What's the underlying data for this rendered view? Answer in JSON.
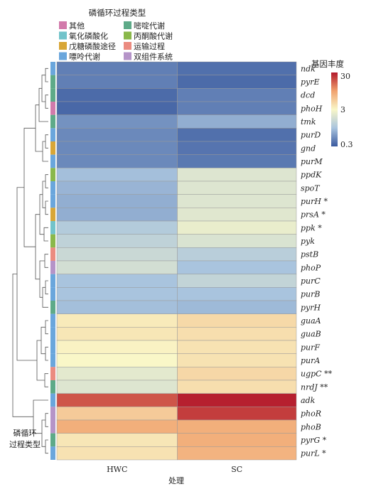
{
  "legend": {
    "title": "磷循环过程类型",
    "items": [
      {
        "label": "其他",
        "color": "#d27aab"
      },
      {
        "label": "嘧啶代谢",
        "color": "#5eaa88"
      },
      {
        "label": "氧化磷酸化",
        "color": "#72c3ca"
      },
      {
        "label": "丙酮酸代谢",
        "color": "#8ab84a"
      },
      {
        "label": "戊糖磷酸途径",
        "color": "#d8a636"
      },
      {
        "label": "运输过程",
        "color": "#eb8b80"
      },
      {
        "label": "嘌呤代谢",
        "color": "#6aa6dc"
      },
      {
        "label": "双组件系统",
        "color": "#b594c8"
      }
    ]
  },
  "colorbar": {
    "title": "基因丰度",
    "ticks": [
      "30",
      "3",
      "0.3"
    ]
  },
  "side_label": [
    "磷循环",
    "过程类型"
  ],
  "xlabel": "处理",
  "chart_data": {
    "type": "heatmap",
    "columns": [
      "HWC",
      "SC"
    ],
    "scale": "log",
    "color_range": [
      0.3,
      30
    ],
    "rows": [
      {
        "label": "ndk",
        "mark": "",
        "category": "嘌呤代谢",
        "values": [
          0.45,
          0.38
        ]
      },
      {
        "label": "pyrE",
        "mark": "",
        "category": "嘧啶代谢",
        "values": [
          0.45,
          0.36
        ]
      },
      {
        "label": "dcd",
        "mark": "",
        "category": "嘧啶代谢",
        "values": [
          0.36,
          0.45
        ]
      },
      {
        "label": "phoH",
        "mark": "",
        "category": "其他",
        "values": [
          0.35,
          0.45
        ]
      },
      {
        "label": "tmk",
        "mark": "",
        "category": "嘧啶代谢",
        "values": [
          0.55,
          0.75
        ]
      },
      {
        "label": "purD",
        "mark": "",
        "category": "嘌呤代谢",
        "values": [
          0.5,
          0.38
        ]
      },
      {
        "label": "gnd",
        "mark": "",
        "category": "戊糖磷酸途径",
        "values": [
          0.5,
          0.4
        ]
      },
      {
        "label": "purM",
        "mark": "",
        "category": "嘌呤代谢",
        "values": [
          0.5,
          0.42
        ]
      },
      {
        "label": "ppdK",
        "mark": "",
        "category": "丙酮酸代谢",
        "values": [
          0.9,
          2.0
        ]
      },
      {
        "label": "spoT",
        "mark": "",
        "category": "嘌呤代谢",
        "values": [
          0.8,
          2.0
        ]
      },
      {
        "label": "purH",
        "mark": "*",
        "category": "嘌呤代谢",
        "values": [
          0.75,
          2.0
        ]
      },
      {
        "label": "prsA",
        "mark": "*",
        "category": "戊糖磷酸途径",
        "values": [
          0.75,
          2.1
        ]
      },
      {
        "label": "ppk",
        "mark": "*",
        "category": "氧化磷酸化",
        "values": [
          1.1,
          2.4
        ]
      },
      {
        "label": "pyk",
        "mark": "",
        "category": "丙酮酸代谢",
        "values": [
          1.3,
          1.9
        ]
      },
      {
        "label": "pstB",
        "mark": "",
        "category": "运输过程",
        "values": [
          1.5,
          1.2
        ]
      },
      {
        "label": "phoP",
        "mark": "",
        "category": "双组件系统",
        "values": [
          1.7,
          0.95
        ]
      },
      {
        "label": "purC",
        "mark": "",
        "category": "嘌呤代谢",
        "values": [
          0.95,
          1.35
        ]
      },
      {
        "label": "purB",
        "mark": "",
        "category": "嘌呤代谢",
        "values": [
          0.95,
          0.95
        ]
      },
      {
        "label": "pyrH",
        "mark": "",
        "category": "嘧啶代谢",
        "values": [
          0.9,
          0.85
        ]
      },
      {
        "label": "guaA",
        "mark": "",
        "category": "嘌呤代谢",
        "values": [
          3.6,
          4.5
        ]
      },
      {
        "label": "guaB",
        "mark": "",
        "category": "嘌呤代谢",
        "values": [
          3.8,
          4.2
        ]
      },
      {
        "label": "purF",
        "mark": "",
        "category": "嘌呤代谢",
        "values": [
          3.2,
          4.0
        ]
      },
      {
        "label": "purA",
        "mark": "",
        "category": "嘌呤代谢",
        "values": [
          3.0,
          4.0
        ]
      },
      {
        "label": "ugpC",
        "mark": "**",
        "category": "运输过程",
        "values": [
          2.2,
          4.6
        ]
      },
      {
        "label": "nrdJ",
        "mark": "**",
        "category": "嘧啶代谢",
        "values": [
          2.0,
          4.2
        ]
      },
      {
        "label": "adk",
        "mark": "",
        "category": "嘌呤代谢",
        "values": [
          18,
          28
        ]
      },
      {
        "label": "phoR",
        "mark": "",
        "category": "双组件系统",
        "values": [
          5.5,
          22
        ]
      },
      {
        "label": "phoB",
        "mark": "",
        "category": "双组件系统",
        "values": [
          8,
          8
        ]
      },
      {
        "label": "pyrG",
        "mark": "*",
        "category": "嘧啶代谢",
        "values": [
          3.8,
          8
        ]
      },
      {
        "label": "purL",
        "mark": "*",
        "category": "嘌呤代谢",
        "values": [
          4.0,
          7.5
        ]
      }
    ]
  }
}
